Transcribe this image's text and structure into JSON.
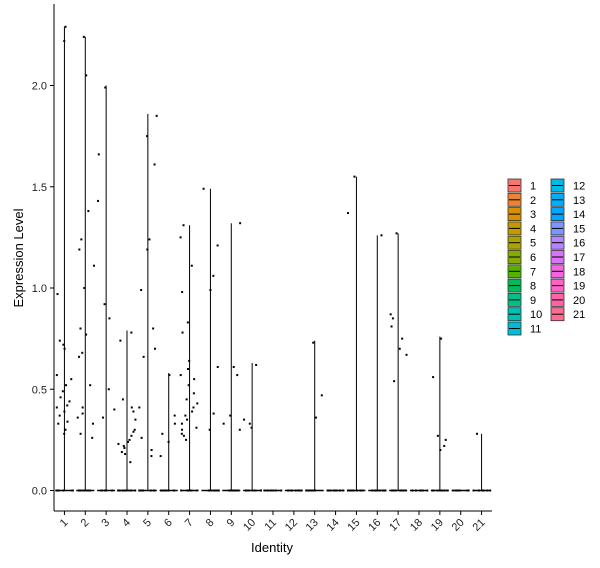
{
  "chart_data": {
    "type": "violin",
    "xlabel": "Identity",
    "ylabel": "Expression Level",
    "ylim": [
      -0.1,
      2.4
    ],
    "yticks": [
      0.0,
      0.5,
      1.0,
      1.5,
      2.0
    ],
    "ytick_labels": [
      "0.0",
      "0.5",
      "1.0",
      "1.5",
      "2.0"
    ],
    "grid": false,
    "legend_position": "right",
    "categories": [
      "1",
      "2",
      "3",
      "4",
      "5",
      "6",
      "7",
      "8",
      "9",
      "10",
      "11",
      "12",
      "13",
      "14",
      "15",
      "16",
      "17",
      "18",
      "19",
      "20",
      "21"
    ],
    "colors": [
      "#F8766D",
      "#EB8335",
      "#DA8F00",
      "#C49A00",
      "#A9A400",
      "#86AC00",
      "#53B400",
      "#00BC56",
      "#00C087",
      "#00C0B2",
      "#00BCD6",
      "#00B8E5",
      "#00AEFA",
      "#00A6FF",
      "#7C96FF",
      "#B385FF",
      "#DC71FA",
      "#F564E3",
      "#FF61C7",
      "#FF63A6",
      "#FF6C91"
    ],
    "max_values": [
      2.29,
      2.24,
      2.0,
      0.79,
      1.86,
      0.58,
      1.31,
      1.49,
      1.32,
      0.63,
      0.0,
      0.0,
      0.74,
      0.0,
      1.55,
      1.26,
      1.27,
      0.0,
      0.76,
      0.0,
      0.28
    ],
    "points": [
      [
        2.22,
        2.29,
        0.97,
        0.74,
        0.72,
        0.7,
        0.57,
        0.55,
        0.52,
        0.49,
        0.46,
        0.44,
        0.42,
        0.41,
        0.39,
        0.37,
        0.34,
        0.33,
        0.3,
        0.28
      ],
      [
        2.24,
        2.05,
        1.38,
        1.24,
        1.19,
        1.11,
        1.0,
        0.8,
        0.77,
        0.68,
        0.66,
        0.52,
        0.41,
        0.38,
        0.36,
        0.33,
        0.28,
        0.26
      ],
      [
        1.99,
        1.66,
        1.43,
        0.92,
        0.85,
        0.5,
        0.4,
        0.36
      ],
      [
        0.78,
        0.74,
        0.45,
        0.41,
        0.39,
        0.35,
        0.3,
        0.29,
        0.27,
        0.25,
        0.24,
        0.23,
        0.22,
        0.21,
        0.19,
        0.18,
        0.14
      ],
      [
        1.85,
        1.75,
        1.61,
        1.24,
        1.19,
        0.99,
        0.8,
        0.7,
        0.66,
        0.41,
        0.26,
        0.2,
        0.17
      ],
      [
        0.57,
        0.37,
        0.33,
        0.28,
        0.24,
        0.17
      ],
      [
        1.31,
        1.25,
        1.11,
        0.98,
        0.83,
        0.78,
        0.64,
        0.6,
        0.57,
        0.55,
        0.52,
        0.48,
        0.45,
        0.43,
        0.41,
        0.39,
        0.37,
        0.35,
        0.33,
        0.31,
        0.3,
        0.28,
        0.27,
        0.25
      ],
      [
        1.49,
        1.21,
        1.06,
        0.99,
        0.61,
        0.38,
        0.3
      ],
      [
        1.32,
        0.61,
        0.57,
        0.37,
        0.33,
        0.3
      ],
      [
        0.62,
        0.35,
        0.33,
        0.31
      ],
      [],
      [],
      [
        0.73,
        0.47,
        0.36
      ],
      [],
      [
        1.55,
        1.37
      ],
      [
        1.26
      ],
      [
        1.27,
        0.87,
        0.85,
        0.81,
        0.75,
        0.7,
        0.67,
        0.54
      ],
      [],
      [
        0.75,
        0.56,
        0.27,
        0.25,
        0.22,
        0.2
      ],
      [],
      [
        0.28
      ]
    ]
  }
}
